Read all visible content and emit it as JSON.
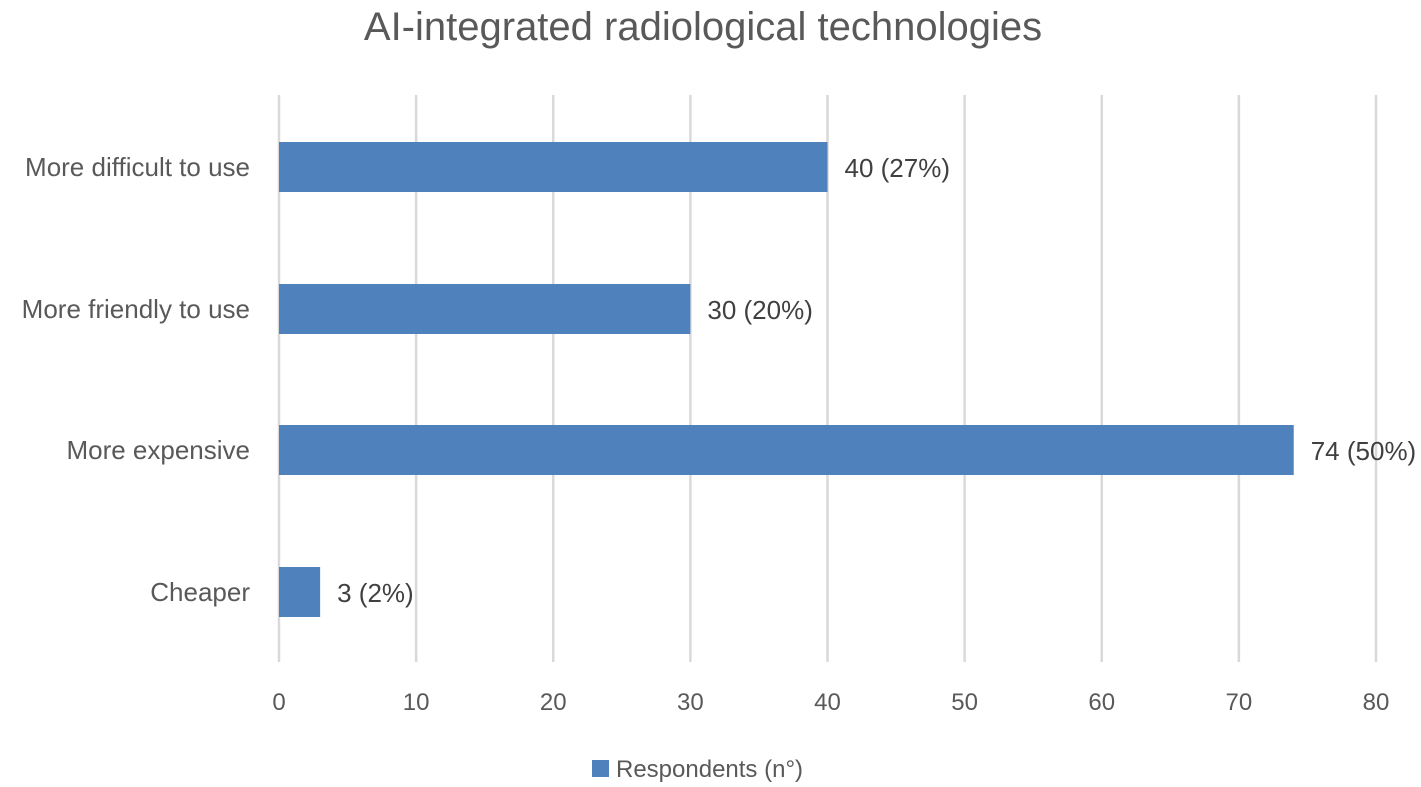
{
  "chart_data": {
    "type": "bar",
    "orientation": "horizontal",
    "title": "AI-integrated radiological technologies",
    "categories": [
      "More difficult to use",
      "More friendly to use",
      "More expensive",
      "Cheaper"
    ],
    "series": [
      {
        "name": "Respondents (n°)",
        "values": [
          40,
          30,
          74,
          3
        ],
        "data_labels": [
          "40 (27%)",
          "30 (20%)",
          "74 (50%)",
          "3 (2%)"
        ],
        "color": "#4f81bd"
      }
    ],
    "xlim": [
      0,
      80
    ],
    "x_ticks": [
      0,
      10,
      20,
      30,
      40,
      50,
      60,
      70,
      80
    ],
    "x_tick_labels": [
      "0",
      "10",
      "20",
      "30",
      "40",
      "50",
      "60",
      "70",
      "80"
    ],
    "grid": "vertical",
    "legend": {
      "position": "bottom",
      "entries": [
        "Respondents (n°)"
      ]
    },
    "colors": {
      "bar": "#4f81bd",
      "grid": "#d9d9d9",
      "text": "#595959"
    }
  }
}
